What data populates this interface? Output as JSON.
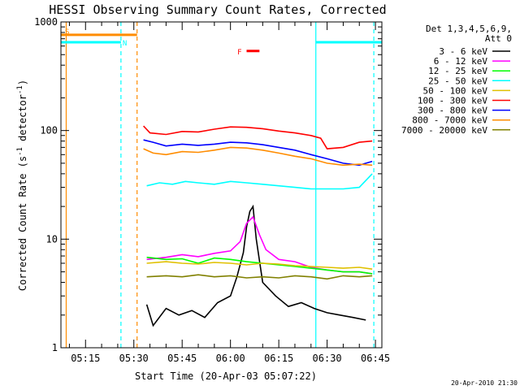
{
  "chart_data": {
    "type": "line",
    "title": "HESSI Observing Summary Count Rates, Corrected",
    "xlabel": "Start Time (20-Apr-03 05:07:22)",
    "ylabel_main": "Corrected Count Rate (s",
    "ylabel_sup1": "-1",
    "ylabel_mid": " detector",
    "ylabel_sup2": "-1",
    "ylabel_end": ")",
    "y_scale": "log",
    "ylim": [
      1,
      1000
    ],
    "xlim": [
      "05:07:22",
      "06:47:00"
    ],
    "x_ticks": [
      "05:15",
      "05:30",
      "05:45",
      "06:00",
      "06:15",
      "06:30",
      "06:45"
    ],
    "y_ticks": [
      "1",
      "10",
      "100",
      "1000"
    ],
    "legend": {
      "placement": "right-outside",
      "header1": "Det 1,3,4,5,6,9,",
      "header2": "Att 0",
      "entries": [
        {
          "label": "3 - 6 keV",
          "color": "#000000"
        },
        {
          "label": "6 - 12 keV",
          "color": "#ff00ff"
        },
        {
          "label": "12 - 25 keV",
          "color": "#00ff00"
        },
        {
          "label": "25 - 50 keV",
          "color": "#00ffff"
        },
        {
          "label": "50 - 100 keV",
          "color": "#e0c000"
        },
        {
          "label": "100 - 300 keV",
          "color": "#ff0000"
        },
        {
          "label": "300 - 800 keV",
          "color": "#0000ff"
        },
        {
          "label": "800 - 7000 keV",
          "color": "#ff8c00"
        },
        {
          "label": "7000 - 20000 keV",
          "color": "#808000"
        }
      ]
    },
    "flags": [
      {
        "label": "S",
        "color": "#ff8c00",
        "start": "05:07:22",
        "end": "05:31:00",
        "y": 760
      },
      {
        "label": "N",
        "color": "#00ffff",
        "start": "05:07:22",
        "end": "05:26:00",
        "y": 650
      },
      {
        "label": "",
        "color": "#00ffff",
        "start": "06:26:30",
        "end": "06:47:00",
        "y": 650
      },
      {
        "label": "F",
        "color": "#ff0000",
        "start": "06:05:00",
        "end": "06:09:00",
        "y": 540
      }
    ],
    "vlines": [
      {
        "t": "05:09:00",
        "color": "#ff8c00",
        "style": "solid"
      },
      {
        "t": "05:26:00",
        "color": "#00ffff",
        "style": "dashed"
      },
      {
        "t": "05:31:00",
        "color": "#ff8c00",
        "style": "dashed"
      },
      {
        "t": "06:26:30",
        "color": "#00ffff",
        "style": "solid"
      },
      {
        "t": "06:44:30",
        "color": "#00ffff",
        "style": "dashed"
      }
    ],
    "series": [
      {
        "name": "3 - 6 keV",
        "color": "#000000",
        "t": [
          "05:34",
          "05:36",
          "05:40",
          "05:44",
          "05:48",
          "05:52",
          "05:56",
          "06:00",
          "06:02",
          "06:04",
          "06:05",
          "06:06",
          "06:07",
          "06:08",
          "06:10",
          "06:14",
          "06:18",
          "06:22",
          "06:26",
          "06:30",
          "06:34",
          "06:38",
          "06:42"
        ],
        "v": [
          2.5,
          1.6,
          2.3,
          2.0,
          2.2,
          1.9,
          2.6,
          3.0,
          4.5,
          7.5,
          13,
          18,
          20,
          10,
          4.0,
          3.0,
          2.4,
          2.6,
          2.3,
          2.1,
          2.0,
          1.9,
          1.8
        ]
      },
      {
        "name": "6 - 12 keV",
        "color": "#ff00ff",
        "t": [
          "05:34",
          "05:40",
          "05:45",
          "05:50",
          "05:55",
          "06:00",
          "06:03",
          "06:05",
          "06:07",
          "06:09",
          "06:11",
          "06:15",
          "06:20",
          "06:25",
          "06:30",
          "06:35",
          "06:40",
          "06:44"
        ],
        "v": [
          6.5,
          6.8,
          7.2,
          6.9,
          7.4,
          7.8,
          9.5,
          14,
          16,
          11,
          8.0,
          6.5,
          6.2,
          5.5,
          5.2,
          5.0,
          5.0,
          4.8
        ]
      },
      {
        "name": "12 - 25 keV",
        "color": "#00ff00",
        "t": [
          "05:34",
          "05:40",
          "05:45",
          "05:50",
          "05:55",
          "06:00",
          "06:05",
          "06:10",
          "06:15",
          "06:20",
          "06:25",
          "06:30",
          "06:35",
          "06:40",
          "06:44"
        ],
        "v": [
          6.8,
          6.5,
          6.6,
          6.0,
          6.7,
          6.5,
          6.2,
          6.0,
          5.8,
          5.6,
          5.4,
          5.2,
          5.0,
          5.0,
          4.8
        ]
      },
      {
        "name": "25 - 50 keV",
        "color": "#00ffff",
        "t": [
          "05:34",
          "05:38",
          "05:42",
          "05:46",
          "05:50",
          "05:55",
          "06:00",
          "06:05",
          "06:10",
          "06:15",
          "06:20",
          "06:25",
          "06:30",
          "06:35",
          "06:40",
          "06:44"
        ],
        "v": [
          31,
          33,
          32,
          34,
          33,
          32,
          34,
          33,
          32,
          31,
          30,
          29,
          29,
          29,
          30,
          40
        ]
      },
      {
        "name": "50 - 100 keV",
        "color": "#e0c000",
        "t": [
          "05:34",
          "05:40",
          "05:45",
          "05:50",
          "05:55",
          "06:00",
          "06:05",
          "06:10",
          "06:15",
          "06:20",
          "06:25",
          "06:30",
          "06:35",
          "06:40",
          "06:44"
        ],
        "v": [
          6.0,
          6.2,
          6.0,
          5.9,
          6.1,
          6.0,
          5.8,
          6.0,
          5.9,
          5.7,
          5.6,
          5.5,
          5.4,
          5.5,
          5.3
        ]
      },
      {
        "name": "100 - 300 keV",
        "color": "#ff0000",
        "t": [
          "05:33",
          "05:35",
          "05:40",
          "05:45",
          "05:50",
          "05:55",
          "06:00",
          "06:05",
          "06:10",
          "06:15",
          "06:20",
          "06:25",
          "06:28",
          "06:30",
          "06:35",
          "06:40",
          "06:44"
        ],
        "v": [
          110,
          95,
          92,
          98,
          97,
          103,
          108,
          107,
          104,
          99,
          95,
          90,
          85,
          68,
          70,
          78,
          80
        ]
      },
      {
        "name": "300 - 800 keV",
        "color": "#0000ff",
        "t": [
          "05:33",
          "05:36",
          "05:40",
          "05:45",
          "05:50",
          "05:55",
          "06:00",
          "06:05",
          "06:10",
          "06:15",
          "06:20",
          "06:25",
          "06:30",
          "06:35",
          "06:40",
          "06:44"
        ],
        "v": [
          82,
          78,
          72,
          75,
          73,
          75,
          78,
          77,
          74,
          70,
          66,
          60,
          55,
          50,
          48,
          52
        ]
      },
      {
        "name": "800 - 7000 keV",
        "color": "#ff8c00",
        "t": [
          "05:33",
          "05:36",
          "05:40",
          "05:45",
          "05:50",
          "05:55",
          "06:00",
          "06:05",
          "06:10",
          "06:15",
          "06:20",
          "06:25",
          "06:30",
          "06:35",
          "06:40",
          "06:44"
        ],
        "v": [
          68,
          62,
          60,
          64,
          63,
          66,
          70,
          69,
          66,
          62,
          58,
          55,
          50,
          48,
          49,
          48
        ]
      },
      {
        "name": "7000 - 20000 keV",
        "color": "#808000",
        "t": [
          "05:34",
          "05:40",
          "05:45",
          "05:50",
          "05:55",
          "06:00",
          "06:05",
          "06:10",
          "06:15",
          "06:20",
          "06:25",
          "06:30",
          "06:35",
          "06:40",
          "06:44"
        ],
        "v": [
          4.5,
          4.6,
          4.5,
          4.7,
          4.5,
          4.6,
          4.4,
          4.5,
          4.4,
          4.6,
          4.5,
          4.3,
          4.6,
          4.5,
          4.6
        ]
      }
    ],
    "timestamp": "20-Apr-2010 21:30"
  }
}
